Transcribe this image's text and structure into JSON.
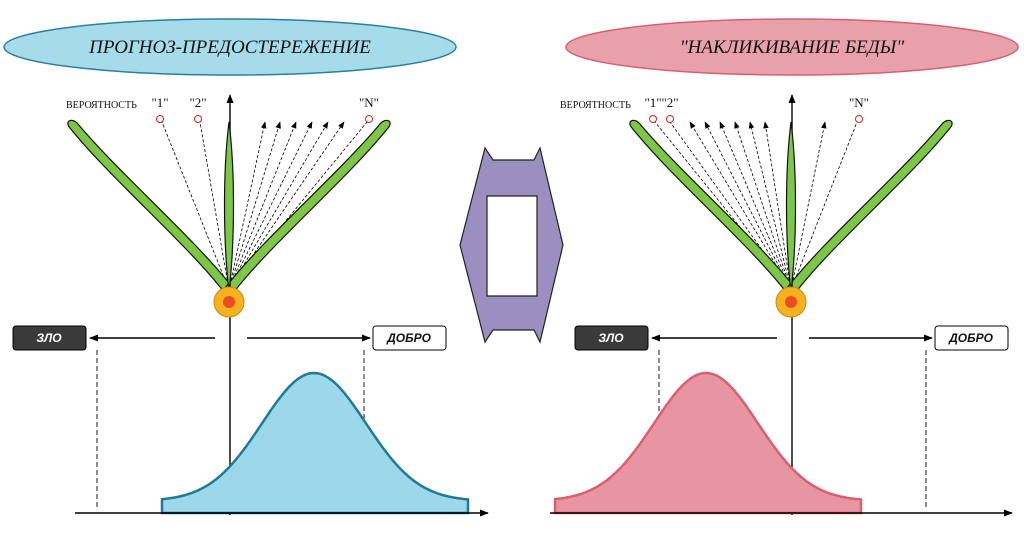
{
  "left_panel": {
    "title": "ПРОГНОЗ-ПРЕДОСТЕРЕЖЕНИЕ",
    "probability_label": "ВЕРОЯТНОСТЬ",
    "outcome_labels": [
      "\"1\"",
      "\"2\"",
      "\"N\""
    ],
    "evil_label": "ЗЛО",
    "good_label": "ДОБРО",
    "colors": {
      "ellipse": "#a6dcea",
      "curve_fill": "#9dd8ea",
      "curve_stroke": "#1e7b93"
    }
  },
  "right_panel": {
    "title": "\"НАКЛИКИВАНИЕ БЕДЫ\"",
    "probability_label": "ВЕРОЯТНОСТЬ",
    "outcome_labels": [
      "\"1\"",
      "\"2\"",
      "\"N\""
    ],
    "evil_label": "ЗЛО",
    "good_label": "ДОБРО",
    "colors": {
      "ellipse": "#e8a0aa",
      "curve_fill": "#e895a3",
      "curve_stroke": "#d9606f"
    }
  },
  "center_symbol": {
    "color": "#9a8fc0"
  },
  "colors": {
    "leaf": "#7ec646",
    "bud_outer": "#f5b21f",
    "bud_inner": "#ee4b21",
    "evil_box": "#3a3a3a"
  }
}
